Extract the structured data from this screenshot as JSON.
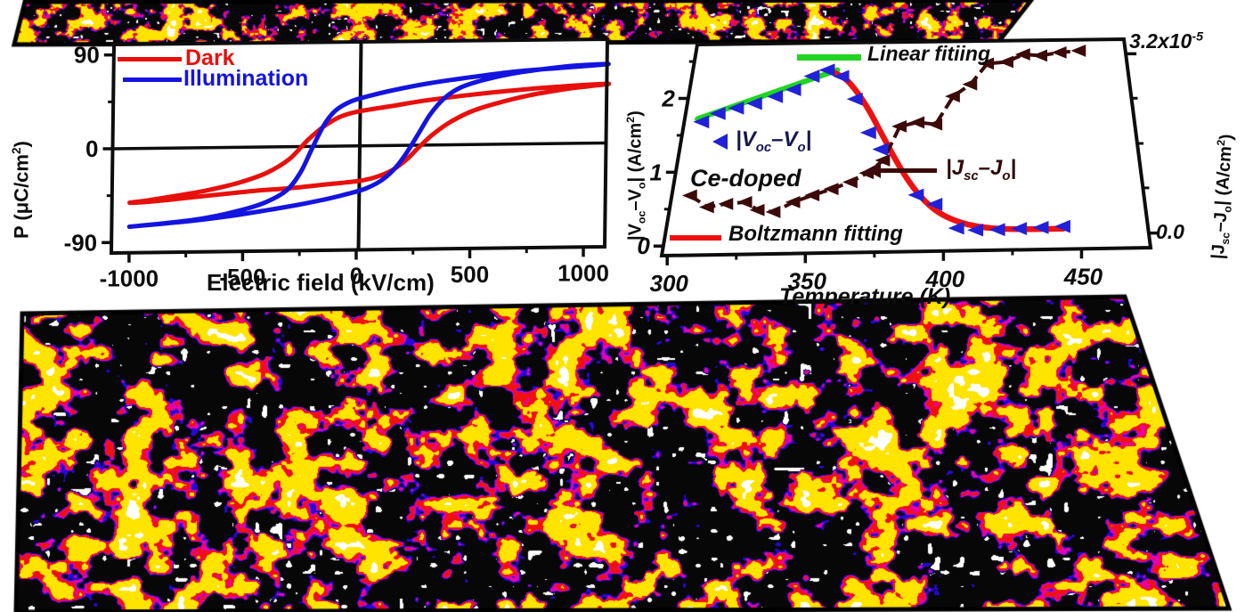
{
  "palette": {
    "texture_black": "#070707",
    "texture_blue": "#2408d8",
    "texture_magenta": "#e800a8",
    "texture_red": "#f01010",
    "texture_yellow": "#ffe400",
    "texture_white": "#ffffff",
    "axis_black": "#0d0d0d",
    "dark_loop_red": "#e8100c",
    "illumination_blue": "#1414e0",
    "boltzmann_red": "#ee1111",
    "linear_fit_green": "#21d421",
    "voc_marker_blue": "#2121d8",
    "jsc_marker_maroon": "#3c0a0a",
    "voc_text_navy": "#16164e",
    "jsc_text_maroon": "#2d0707"
  },
  "chart_data": [
    {
      "id": "pe-hysteresis-loop",
      "type": "line",
      "title": "",
      "xlabel": "Electric field (kV/cm)",
      "ylabel_parts": {
        "p1": "P (",
        "p2": "μC/cm",
        "sup": "2",
        "p3": ")"
      },
      "xlim": [
        -1078,
        1094
      ],
      "ylim": [
        -100,
        100
      ],
      "xticks": [
        -1000,
        -500,
        0,
        500,
        1000
      ],
      "xticks_minor": [
        -750,
        -250,
        250,
        750
      ],
      "yticks": [
        90,
        0,
        -90
      ],
      "yticks_minor": [
        45,
        -45
      ],
      "grid": false,
      "legend_position": "top-left",
      "legend": [
        {
          "label": "Dark",
          "color": "#e8100c"
        },
        {
          "label": "Illumination",
          "color": "#1414e0"
        }
      ],
      "series": [
        {
          "name": "Dark",
          "color": "#e8100c",
          "points_lower": [
            [
              -1000,
              -52
            ],
            [
              -900,
              -51
            ],
            [
              -750,
              -48
            ],
            [
              -600,
              -45
            ],
            [
              -450,
              -42
            ],
            [
              -300,
              -40
            ],
            [
              -150,
              -37
            ],
            [
              -50,
              -35
            ],
            [
              30,
              -33
            ],
            [
              100,
              -29
            ],
            [
              160,
              -23
            ],
            [
              220,
              -13
            ],
            [
              270,
              -2
            ],
            [
              330,
              10
            ],
            [
              400,
              21
            ],
            [
              500,
              32
            ],
            [
              620,
              40
            ],
            [
              760,
              47
            ],
            [
              900,
              52
            ],
            [
              1020,
              55
            ],
            [
              1100,
              57
            ]
          ],
          "points_upper": [
            [
              1100,
              57
            ],
            [
              900,
              55
            ],
            [
              700,
              52
            ],
            [
              500,
              48
            ],
            [
              300,
              43
            ],
            [
              150,
              38
            ],
            [
              0,
              33
            ],
            [
              -80,
              28
            ],
            [
              -150,
              19
            ],
            [
              -220,
              6
            ],
            [
              -300,
              -12
            ],
            [
              -400,
              -25
            ],
            [
              -520,
              -34
            ],
            [
              -660,
              -41
            ],
            [
              -800,
              -46
            ],
            [
              -920,
              -50
            ],
            [
              -1000,
              -52
            ]
          ]
        },
        {
          "name": "Illumination",
          "color": "#1414e0",
          "points_lower": [
            [
              -1000,
              -75
            ],
            [
              -880,
              -73
            ],
            [
              -720,
              -70
            ],
            [
              -560,
              -66
            ],
            [
              -400,
              -61
            ],
            [
              -260,
              -56
            ],
            [
              -140,
              -51
            ],
            [
              -40,
              -46
            ],
            [
              40,
              -41
            ],
            [
              110,
              -33
            ],
            [
              170,
              -21
            ],
            [
              220,
              -6
            ],
            [
              270,
              12
            ],
            [
              320,
              30
            ],
            [
              380,
              45
            ],
            [
              450,
              55
            ],
            [
              550,
              62
            ],
            [
              680,
              68
            ],
            [
              820,
              72
            ],
            [
              960,
              75
            ],
            [
              1100,
              76
            ]
          ],
          "points_upper": [
            [
              1100,
              76
            ],
            [
              900,
              73
            ],
            [
              700,
              70
            ],
            [
              500,
              65
            ],
            [
              300,
              59
            ],
            [
              150,
              53
            ],
            [
              50,
              48
            ],
            [
              -30,
              43
            ],
            [
              -100,
              34
            ],
            [
              -150,
              20
            ],
            [
              -200,
              -2
            ],
            [
              -250,
              -25
            ],
            [
              -310,
              -42
            ],
            [
              -400,
              -53
            ],
            [
              -520,
              -61
            ],
            [
              -680,
              -68
            ],
            [
              -840,
              -72
            ],
            [
              -1000,
              -75
            ]
          ]
        }
      ]
    },
    {
      "id": "photoresponse-vs-temperature",
      "type": "scatter",
      "title": "",
      "xlabel": "Temperature (K)",
      "ylabel_left_parts": {
        "p1": "|V",
        "s1": "oc",
        "p2": "–V",
        "s2": "o",
        "p3": "| (A/cm",
        "sup": "2",
        "p4": ")"
      },
      "ylabel_right_parts": {
        "p1": "|J",
        "s1": "sc",
        "p2": "–J",
        "s2": "o",
        "p3": "| (A/cm",
        "sup": "2",
        "p4": ")"
      },
      "xlim": [
        298,
        475
      ],
      "ylim_left": [
        -0.13,
        2.73
      ],
      "xticks": [
        300,
        350,
        400,
        450
      ],
      "xticks_minor": [
        325,
        375,
        425
      ],
      "yticks_left": [
        0,
        1,
        2
      ],
      "yticks_left_minor": [
        0.5,
        1.5,
        2.5
      ],
      "right_axis": {
        "top_label_base": "3.2x10",
        "top_label_exp": "-5",
        "bottom_label": "0.0",
        "top_tick_at_left_units": 2.53,
        "bottom_tick_at_left_units": 0.07,
        "minor_ticks_at_left_units": [
          0.69,
          1.3,
          1.92
        ]
      },
      "annotation": "Ce-doped",
      "legend": {
        "linear_fit": "Linear fitiing",
        "boltzmann": "Boltzmann fitting",
        "voc_parts": {
          "p1": "|V",
          "s1": "oc",
          "p2": "–V",
          "s2": "o",
          "p3": "|"
        },
        "jsc_parts": {
          "p1": "|J",
          "s1": "sc",
          "p2": "–J",
          "s2": "o",
          "p3": "|"
        }
      },
      "series": [
        {
          "name": "|Voc-Vo|",
          "marker": "left-triangle",
          "color": "#2121d8",
          "axis": "left",
          "points": [
            [
              305,
              1.68
            ],
            [
              311,
              1.79
            ],
            [
              318,
              1.86
            ],
            [
              325,
              1.92
            ],
            [
              333,
              2.01
            ],
            [
              340,
              2.1
            ],
            [
              347,
              2.28
            ],
            [
              353,
              2.36
            ],
            [
              359,
              2.27
            ],
            [
              365,
              1.96
            ],
            [
              371,
              1.5
            ],
            [
              376,
              1.27
            ],
            [
              390,
              0.64
            ],
            [
              397,
              0.51
            ],
            [
              405,
              0.18
            ],
            [
              412,
              0.15
            ],
            [
              420,
              0.15
            ],
            [
              428,
              0.16
            ],
            [
              436,
              0.17
            ],
            [
              444,
              0.18
            ]
          ]
        },
        {
          "name": "Boltzmann fitting",
          "marker": "none",
          "color": "#ee1111",
          "axis": "left",
          "points": [
            [
              356,
              2.32
            ],
            [
              361,
              2.22
            ],
            [
              366,
              2.03
            ],
            [
              371,
              1.78
            ],
            [
              376,
              1.48
            ],
            [
              381,
              1.17
            ],
            [
              386,
              0.88
            ],
            [
              391,
              0.64
            ],
            [
              396,
              0.46
            ],
            [
              401,
              0.34
            ],
            [
              407,
              0.25
            ],
            [
              414,
              0.19
            ],
            [
              422,
              0.16
            ],
            [
              432,
              0.15
            ],
            [
              444,
              0.15
            ]
          ]
        },
        {
          "name": "Linear fitting",
          "marker": "none",
          "color": "#21d421",
          "axis": "left",
          "points": [
            [
              303,
              1.72
            ],
            [
              357,
              2.36
            ]
          ]
        },
        {
          "name": "|Jsc-Jo|",
          "marker": "left-triangle",
          "color": "#3c0a0a",
          "axis": "right",
          "right_axis_top_value": "3.2e-5",
          "right_axis_bottom_value": "0.0",
          "points": [
            [
              305,
              0.68
            ],
            [
              312,
              0.52
            ],
            [
              319,
              0.56
            ],
            [
              326,
              0.58
            ],
            [
              331,
              0.47
            ],
            [
              337,
              0.44
            ],
            [
              344,
              0.57
            ],
            [
              351,
              0.66
            ],
            [
              358,
              0.74
            ],
            [
              365,
              0.83
            ],
            [
              371,
              0.95
            ],
            [
              377,
              1.12
            ],
            [
              383,
              1.58
            ],
            [
              390,
              1.63
            ],
            [
              397,
              1.6
            ],
            [
              404,
              1.98
            ],
            [
              411,
              2.14
            ],
            [
              418,
              2.42
            ],
            [
              426,
              2.44
            ],
            [
              433,
              2.54
            ],
            [
              440,
              2.52
            ],
            [
              448,
              2.56
            ],
            [
              456,
              2.58
            ]
          ]
        }
      ]
    }
  ]
}
